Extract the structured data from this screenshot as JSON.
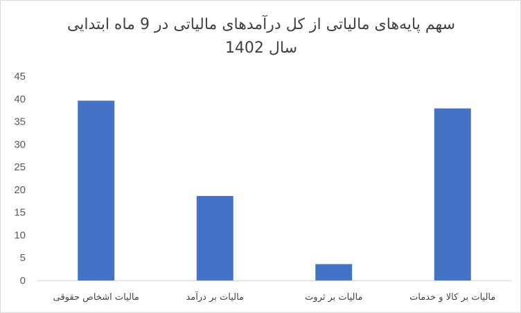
{
  "chart_data": {
    "type": "bar",
    "title_line1": "سهم پایه‌های مالیاتی از کل درآمدهای مالیاتی در 9 ماه ابتدایی",
    "title_line2": "سال 1402",
    "categories": [
      "مالیات اشخاص حقوقی",
      "مالیات بر درآمد",
      "مالیات بر ثروت",
      "مالیات بر کالا و خدمات"
    ],
    "values": [
      39.6,
      18.6,
      3.6,
      37.9
    ],
    "yticks": [
      "0",
      "5",
      "10",
      "15",
      "20",
      "25",
      "30",
      "35",
      "40",
      "45"
    ],
    "ylim": [
      0,
      45
    ],
    "grid": false,
    "colors": {
      "bar": "#4472c4",
      "axis": "#d9d9d9"
    }
  }
}
